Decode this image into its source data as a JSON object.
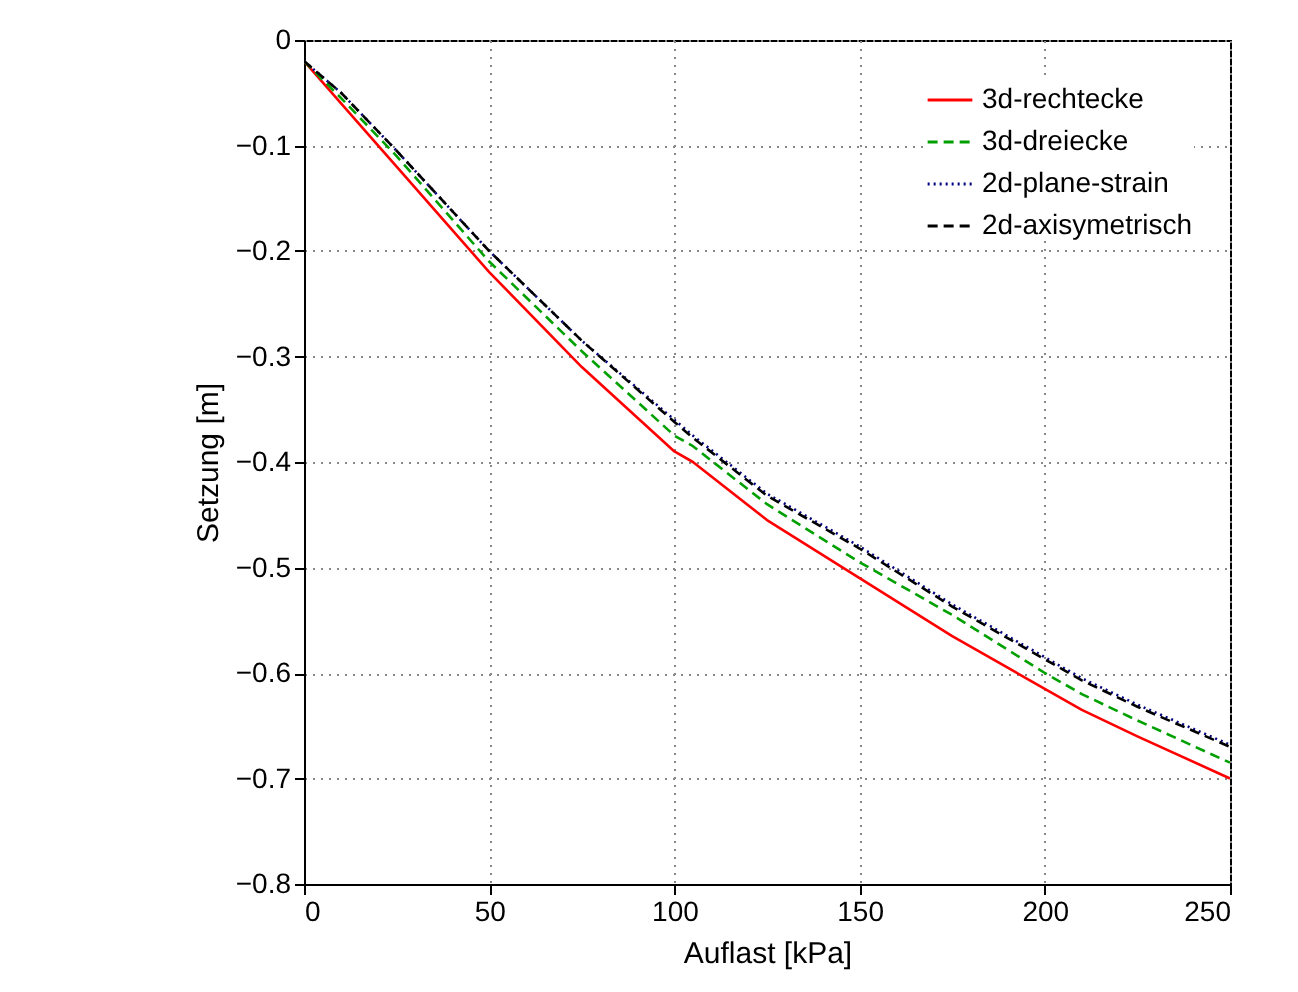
{
  "chart_data": {
    "type": "line",
    "xlabel": "Auflast [kPa]",
    "ylabel": "Setzung [m]",
    "x": [
      0,
      10,
      25,
      50,
      75,
      100,
      105,
      125,
      150,
      175,
      200,
      210,
      225,
      250
    ],
    "series": [
      {
        "name": "3d-rechtecke",
        "color": "#ff0000",
        "line_style": "solid",
        "values": [
          -0.02,
          -0.06,
          -0.12,
          -0.22,
          -0.31,
          -0.39,
          -0.4,
          -0.455,
          -0.51,
          -0.565,
          -0.615,
          -0.635,
          -0.66,
          -0.7
        ]
      },
      {
        "name": "3d-dreiecke",
        "color": "#00a000",
        "line_style": "dashed",
        "values": [
          -0.02,
          -0.055,
          -0.11,
          -0.21,
          -0.295,
          -0.375,
          -0.385,
          -0.44,
          -0.495,
          -0.545,
          -0.6,
          -0.62,
          -0.645,
          -0.685
        ]
      },
      {
        "name": "2d-plane-strain",
        "color": "#000080",
        "line_style": "dotted",
        "values": [
          -0.02,
          -0.05,
          -0.105,
          -0.2,
          -0.285,
          -0.36,
          -0.375,
          -0.43,
          -0.48,
          -0.535,
          -0.585,
          -0.605,
          -0.63,
          -0.668
        ]
      },
      {
        "name": "2d-axisymetrisch",
        "color": "#000000",
        "line_style": "dashed",
        "values": [
          -0.02,
          -0.05,
          -0.105,
          -0.2,
          -0.285,
          -0.362,
          -0.377,
          -0.432,
          -0.482,
          -0.537,
          -0.587,
          -0.607,
          -0.632,
          -0.67
        ]
      }
    ],
    "xlim": [
      0,
      250
    ],
    "xticks": [
      0,
      50,
      100,
      150,
      200,
      250
    ],
    "ylim": [
      -0.8,
      0
    ],
    "yticks": [
      -0.8,
      -0.7,
      -0.6,
      -0.5,
      -0.4,
      -0.3,
      -0.2,
      -0.1,
      0
    ],
    "grid": true,
    "legend": "top right"
  }
}
